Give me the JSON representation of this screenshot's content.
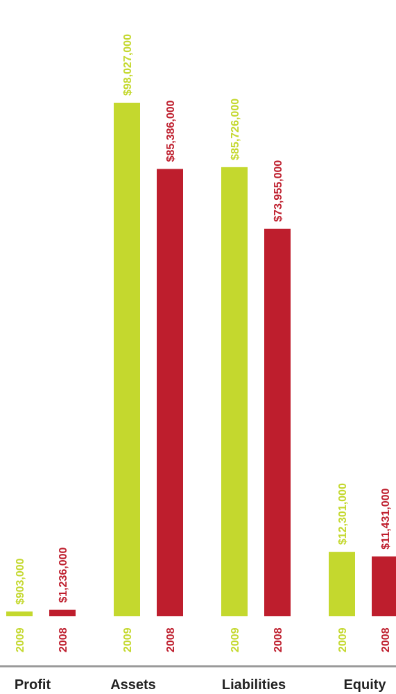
{
  "chart_data": {
    "type": "bar",
    "title": "",
    "xlabel": "",
    "ylabel": "",
    "categories": [
      "Profit",
      "Assets",
      "Liabilities",
      "Equity"
    ],
    "series": [
      {
        "name": "2009",
        "color": "#c4d82e",
        "values": [
          903000,
          98027000,
          85726000,
          12301000
        ],
        "labels": [
          "$903,000",
          "$98,027,000",
          "$85,726,000",
          "$12,301,000"
        ]
      },
      {
        "name": "2008",
        "color": "#be1e2d",
        "values": [
          1236000,
          85386000,
          73955000,
          11431000
        ],
        "labels": [
          "$1,236,000",
          "$85,386,000",
          "$73,955,000",
          "$11,431,000"
        ]
      }
    ],
    "ylim": [
      0,
      115000000
    ],
    "grid": false,
    "legend": "none"
  }
}
